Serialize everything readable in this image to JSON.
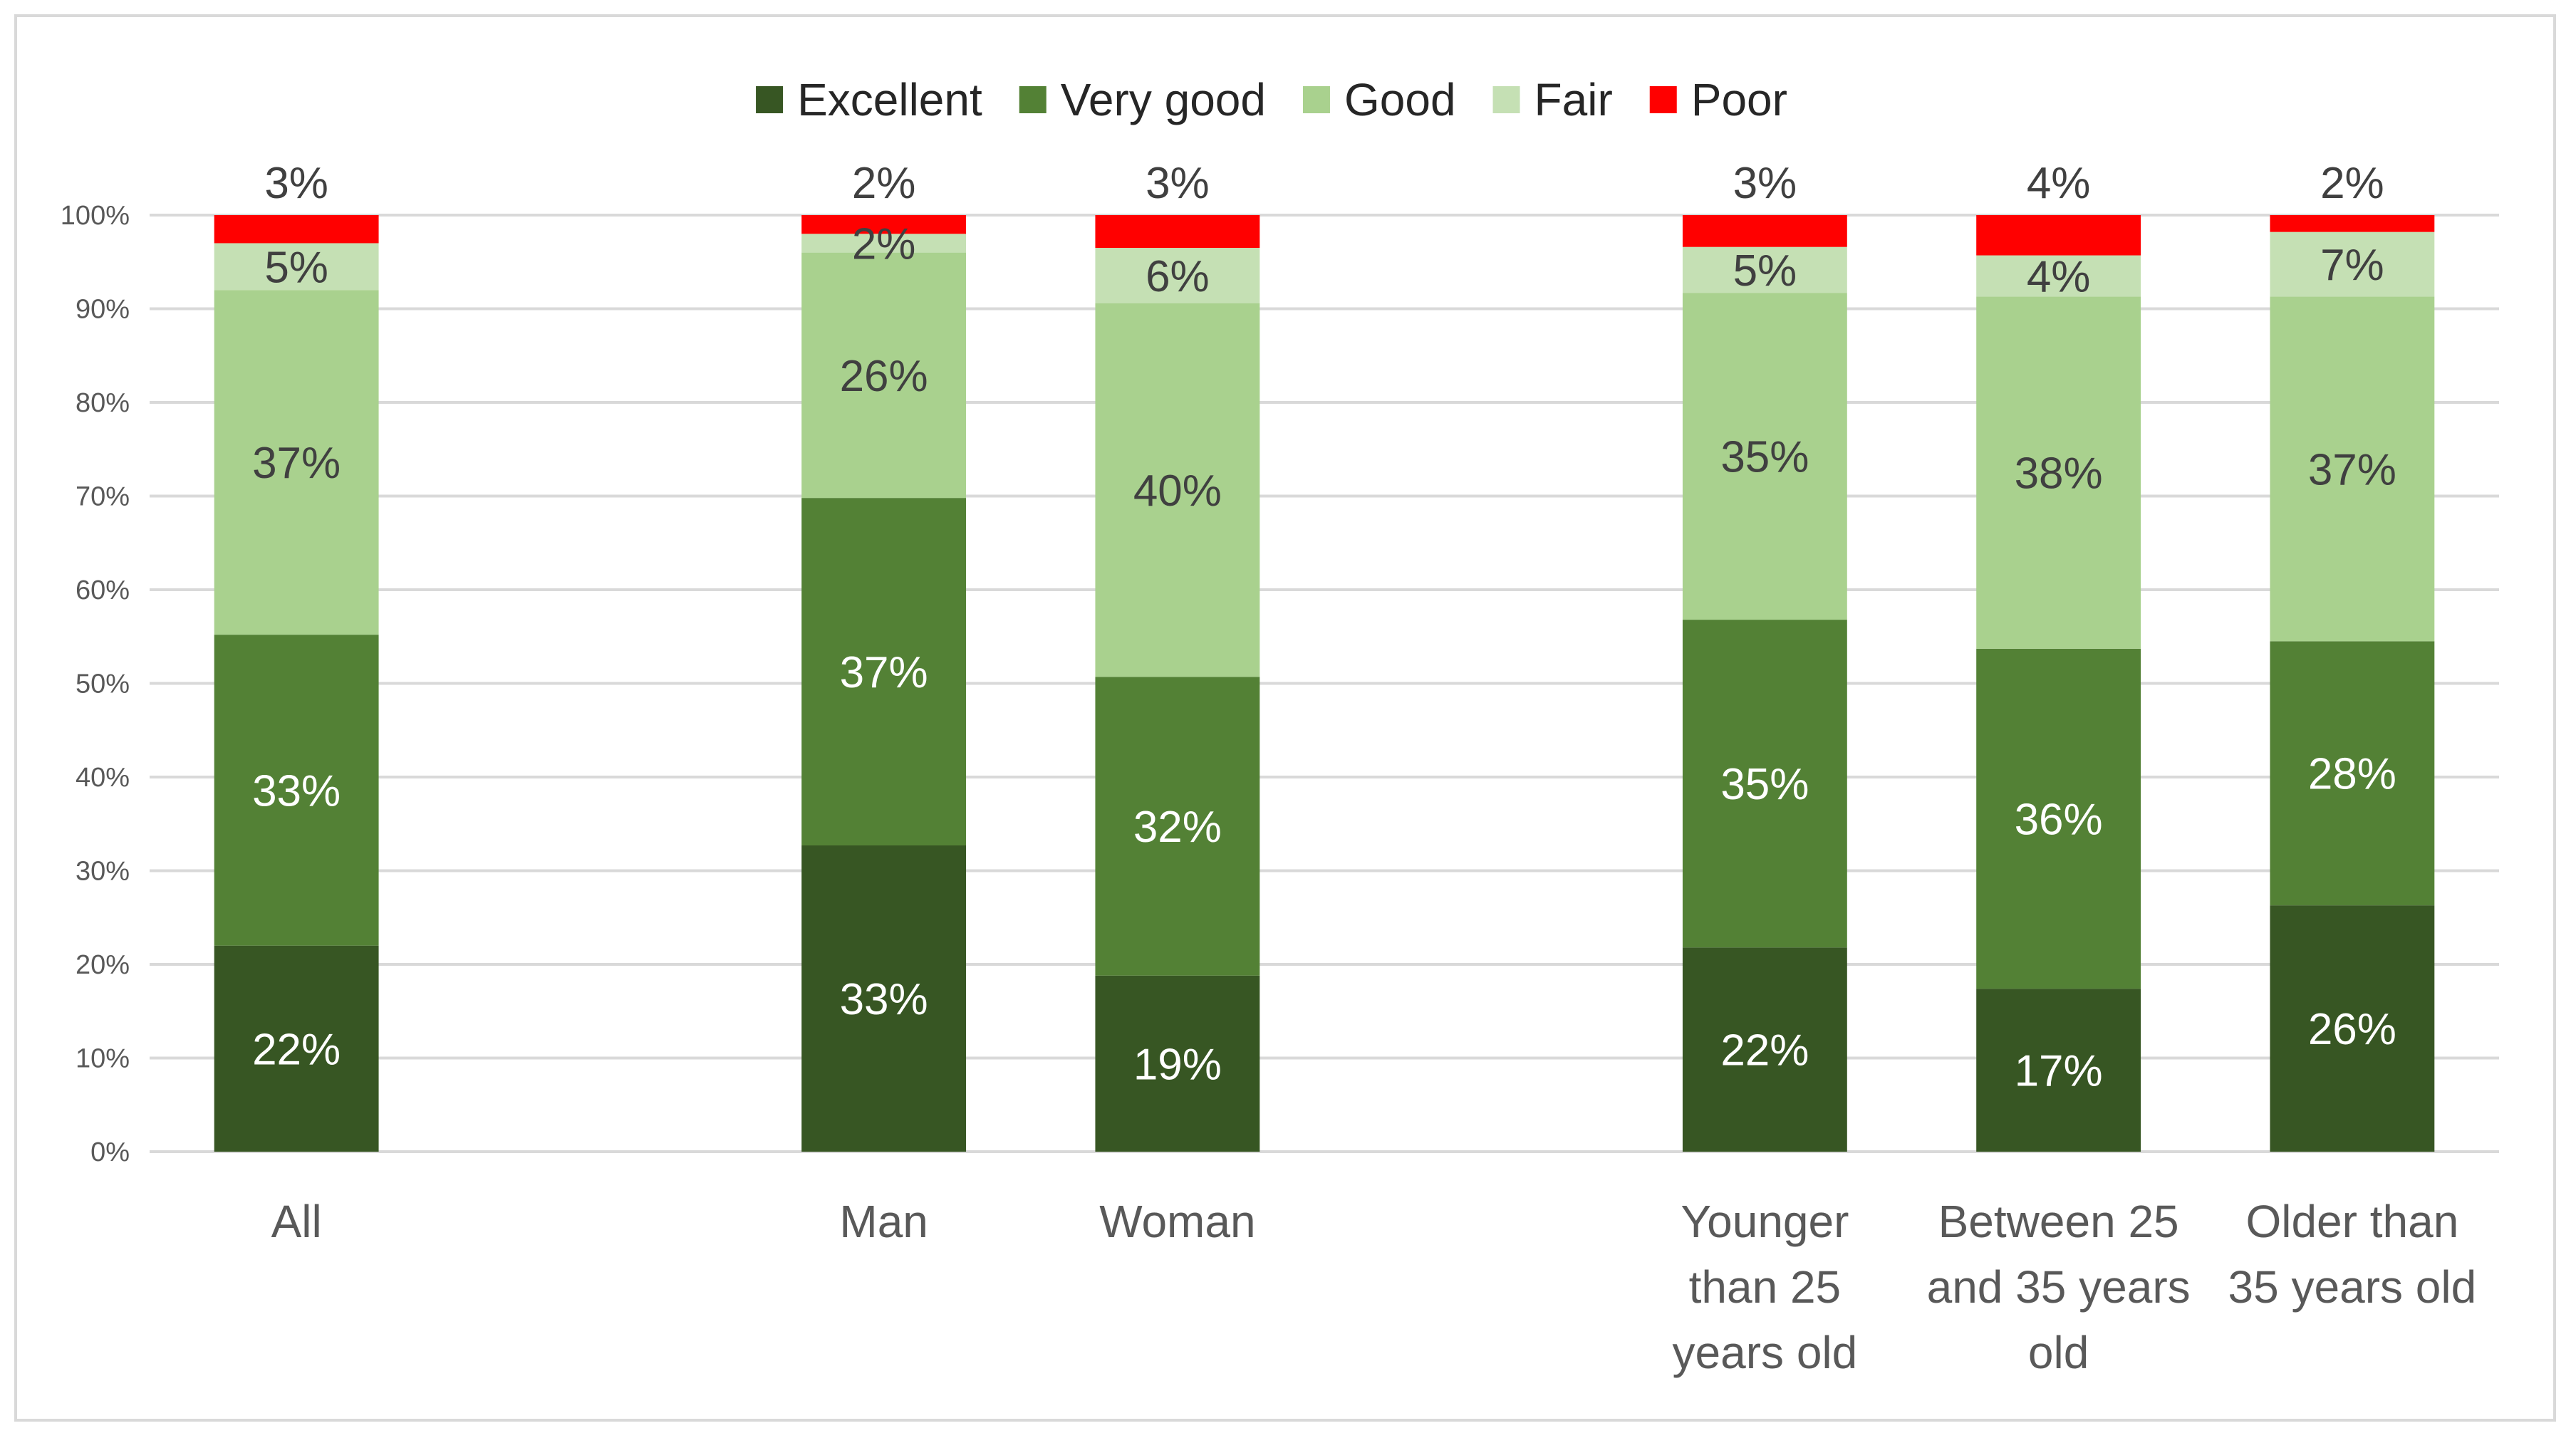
{
  "chart_data": {
    "type": "bar",
    "stacked": true,
    "title": "",
    "xlabel": "",
    "ylabel": "",
    "ylim": [
      0,
      100
    ],
    "y_ticks": [
      "0%",
      "10%",
      "20%",
      "30%",
      "40%",
      "50%",
      "60%",
      "70%",
      "80%",
      "90%",
      "100%"
    ],
    "grid": true,
    "legend_position": "top",
    "categories": [
      {
        "lines": [
          "All"
        ],
        "group": 0
      },
      {
        "lines": [
          "Man"
        ],
        "group": 1
      },
      {
        "lines": [
          "Woman"
        ],
        "group": 1
      },
      {
        "lines": [
          "Younger",
          "than 25",
          "years old"
        ],
        "group": 2
      },
      {
        "lines": [
          "Between 25",
          "and 35 years",
          "old"
        ],
        "group": 2
      },
      {
        "lines": [
          "Older than",
          "35 years old"
        ],
        "group": 2
      }
    ],
    "series": [
      {
        "name": "Excellent",
        "color": "#375623",
        "label_color": "#ffffff",
        "values": [
          22,
          32.7,
          18.8,
          21.8,
          17.4,
          26.3
        ],
        "labels": [
          "22%",
          "33%",
          "19%",
          "22%",
          "17%",
          "26%"
        ]
      },
      {
        "name": "Very good",
        "color": "#538135",
        "label_color": "#ffffff",
        "values": [
          33.2,
          37.1,
          31.9,
          35.0,
          36.3,
          28.2
        ],
        "labels": [
          "33%",
          "37%",
          "32%",
          "35%",
          "36%",
          "28%"
        ]
      },
      {
        "name": "Good",
        "color": "#a9d18e",
        "label_color": "#404040",
        "values": [
          36.8,
          26.2,
          39.9,
          34.9,
          37.6,
          36.8
        ],
        "labels": [
          "37%",
          "26%",
          "40%",
          "35%",
          "38%",
          "37%"
        ]
      },
      {
        "name": "Fair",
        "color": "#c5e0b4",
        "label_color": "#404040",
        "values": [
          5.0,
          2.0,
          5.9,
          4.9,
          4.4,
          6.9
        ],
        "labels": [
          "5%",
          "2%",
          "6%",
          "5%",
          "4%",
          "7%"
        ]
      },
      {
        "name": "Poor",
        "color": "#ff0000",
        "label_color": "#404040",
        "values": [
          3.0,
          2.0,
          3.5,
          3.4,
          4.3,
          1.8
        ],
        "labels": [
          "3%",
          "2%",
          "3%",
          "3%",
          "4%",
          "2%"
        ]
      }
    ]
  }
}
